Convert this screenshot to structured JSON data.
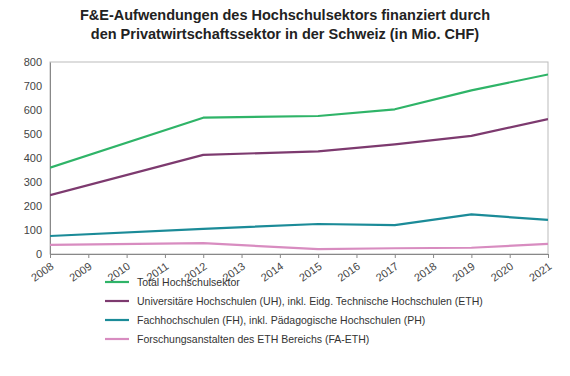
{
  "chart_data": {
    "type": "line",
    "title": "F&E-Aufwendungen des Hochschulsektors finanziert durch\nden Privatwirtschaftssektor in der Schweiz (in Mio. CHF)",
    "x": [
      2008,
      2012,
      2015,
      2017,
      2019,
      2021
    ],
    "xlim": [
      2008,
      2021
    ],
    "xticks": [
      2008,
      2009,
      2010,
      2011,
      2012,
      2013,
      2014,
      2015,
      2016,
      2017,
      2018,
      2019,
      2020,
      2021
    ],
    "ylim": [
      0,
      800
    ],
    "yticks": [
      0,
      100,
      200,
      300,
      400,
      500,
      600,
      700,
      800
    ],
    "grid": false,
    "legend": "bottom",
    "series": [
      {
        "name": "Total Hochschulsektor",
        "color": "#2fb468",
        "values": [
          360,
          568,
          575,
          603,
          682,
          748
        ]
      },
      {
        "name": "Universitäre Hochschulen (UH), inkl. Eidg. Technische Hochschulen (ETH)",
        "color": "#7d3a6f",
        "values": [
          245,
          413,
          428,
          457,
          492,
          562
        ]
      },
      {
        "name": "Fachhochschulen (FH), inkl. Pädagogische Hochschulen (PH)",
        "color": "#1b8b98",
        "values": [
          75,
          105,
          125,
          120,
          165,
          142
        ]
      },
      {
        "name": "Forschungsanstalten des ETH Bereichs (FA-ETH)",
        "color": "#d88cc0",
        "values": [
          38,
          45,
          20,
          24,
          26,
          42
        ]
      }
    ]
  }
}
